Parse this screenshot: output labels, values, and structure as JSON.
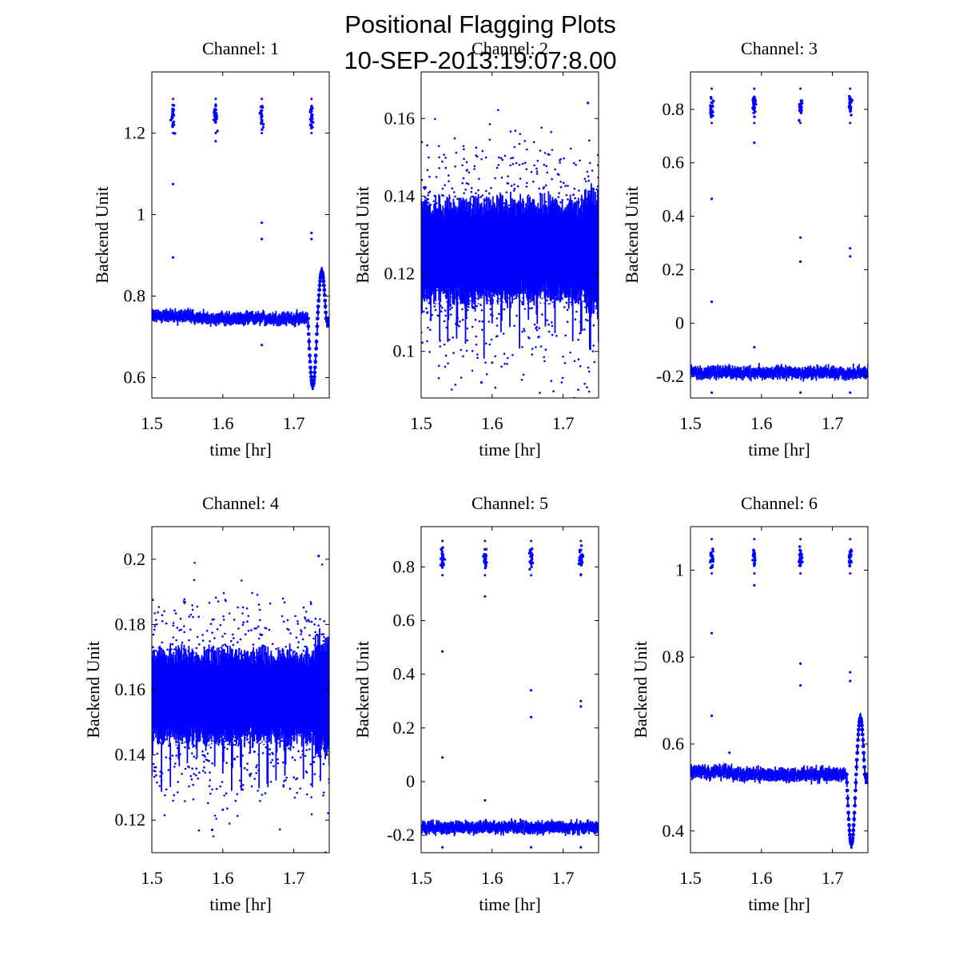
{
  "figure": {
    "title_line1": "Positional Flagging Plots",
    "title_line2": "10-SEP-2013:19:07:8.00",
    "marker_color": "#0000ff",
    "axes_color": "#000000",
    "background": "#ffffff"
  },
  "chart_data": [
    {
      "type": "scatter",
      "title": "Channel: 1",
      "xlabel": "time [hr]",
      "ylabel": "Backend Unit",
      "xlim": [
        1.5,
        1.75
      ],
      "ylim": [
        0.55,
        1.35
      ],
      "xticks": [
        1.5,
        1.6,
        1.7
      ],
      "xtick_labels": [
        "1.5",
        "1.6",
        "1.7"
      ],
      "yticks": [
        0.6,
        0.8,
        1.0,
        1.2
      ],
      "ytick_labels": [
        "0.6",
        "0.8",
        "1",
        "1.2"
      ],
      "series": [
        {
          "name": "Channel 1",
          "pattern": "low_with_dip",
          "baseline": 0.745,
          "spread": 0.01,
          "dip_min": 0.58,
          "dip_peak": 0.86,
          "spikes": [
            1.53,
            1.59,
            1.655,
            1.725
          ],
          "spike_level": 1.24,
          "outlier_pairs": [
            [
              1.53,
              1.075
            ],
            [
              1.53,
              0.895
            ],
            [
              1.655,
              0.98
            ],
            [
              1.655,
              0.94
            ],
            [
              1.725,
              0.955
            ],
            [
              1.725,
              0.94
            ],
            [
              1.59,
              1.18
            ],
            [
              1.655,
              0.68
            ]
          ]
        }
      ]
    },
    {
      "type": "scatter",
      "title": "Channel: 2",
      "xlabel": "time [hr]",
      "ylabel": "Backend Unit",
      "xlim": [
        1.5,
        1.75
      ],
      "ylim": [
        0.088,
        0.172
      ],
      "xticks": [
        1.5,
        1.6,
        1.7
      ],
      "xtick_labels": [
        "1.5",
        "1.6",
        "1.7"
      ],
      "yticks": [
        0.1,
        0.12,
        0.14,
        0.16
      ],
      "ytick_labels": [
        "0.1",
        "0.12",
        "0.14",
        "0.16"
      ],
      "series": [
        {
          "name": "Channel 2",
          "pattern": "noisy_band",
          "center": 0.126,
          "spread": 0.011,
          "max_outlier": 0.164,
          "min_outlier": 0.092
        }
      ]
    },
    {
      "type": "scatter",
      "title": "Channel: 3",
      "xlabel": "time [hr]",
      "ylabel": "Backend Unit",
      "xlim": [
        1.5,
        1.75
      ],
      "ylim": [
        -0.28,
        0.94
      ],
      "xticks": [
        1.5,
        1.6,
        1.7
      ],
      "xtick_labels": [
        "1.5",
        "1.6",
        "1.7"
      ],
      "yticks": [
        -0.2,
        0,
        0.2,
        0.4,
        0.6,
        0.8
      ],
      "ytick_labels": [
        "-0.2",
        "0",
        "0.2",
        "0.4",
        "0.6",
        "0.8"
      ],
      "series": [
        {
          "name": "Channel 3",
          "pattern": "low_flat",
          "baseline": -0.185,
          "spread": 0.015,
          "spikes": [
            1.53,
            1.59,
            1.655,
            1.725
          ],
          "spike_level": 0.81,
          "outlier_pairs": [
            [
              1.53,
              0.465
            ],
            [
              1.53,
              0.08
            ],
            [
              1.59,
              0.675
            ],
            [
              1.655,
              0.32
            ],
            [
              1.655,
              0.23
            ],
            [
              1.725,
              0.28
            ],
            [
              1.725,
              0.25
            ],
            [
              1.59,
              -0.09
            ],
            [
              1.53,
              -0.26
            ],
            [
              1.655,
              -0.26
            ],
            [
              1.725,
              -0.26
            ]
          ]
        }
      ]
    },
    {
      "type": "scatter",
      "title": "Channel: 4",
      "xlabel": "time [hr]",
      "ylabel": "Backend Unit",
      "xlim": [
        1.5,
        1.75
      ],
      "ylim": [
        0.11,
        0.21
      ],
      "xticks": [
        1.5,
        1.6,
        1.7
      ],
      "xtick_labels": [
        "1.5",
        "1.6",
        "1.7"
      ],
      "yticks": [
        0.12,
        0.14,
        0.16,
        0.18,
        0.2
      ],
      "ytick_labels": [
        "0.12",
        "0.14",
        "0.16",
        "0.18",
        "0.2"
      ],
      "series": [
        {
          "name": "Channel 4",
          "pattern": "noisy_band",
          "center": 0.158,
          "spread": 0.012,
          "max_outlier": 0.201,
          "min_outlier": 0.117
        }
      ]
    },
    {
      "type": "scatter",
      "title": "Channel: 5",
      "xlabel": "time [hr]",
      "ylabel": "Backend Unit",
      "xlim": [
        1.5,
        1.75
      ],
      "ylim": [
        -0.265,
        0.95
      ],
      "xticks": [
        1.5,
        1.6,
        1.7
      ],
      "xtick_labels": [
        "1.5",
        "1.6",
        "1.7"
      ],
      "yticks": [
        -0.2,
        0,
        0.2,
        0.4,
        0.6,
        0.8
      ],
      "ytick_labels": [
        "-0.2",
        "0",
        "0.2",
        "0.4",
        "0.6",
        "0.8"
      ],
      "series": [
        {
          "name": "Channel 5",
          "pattern": "low_flat",
          "baseline": -0.17,
          "spread": 0.015,
          "spikes": [
            1.53,
            1.59,
            1.655,
            1.725
          ],
          "spike_level": 0.83,
          "outlier_pairs": [
            [
              1.53,
              0.485
            ],
            [
              1.53,
              0.09
            ],
            [
              1.59,
              0.69
            ],
            [
              1.655,
              0.34
            ],
            [
              1.655,
              0.24
            ],
            [
              1.725,
              0.3
            ],
            [
              1.725,
              0.28
            ],
            [
              1.59,
              -0.07
            ],
            [
              1.53,
              -0.245
            ],
            [
              1.655,
              -0.245
            ],
            [
              1.725,
              -0.245
            ]
          ]
        }
      ]
    },
    {
      "type": "scatter",
      "title": "Channel: 6",
      "xlabel": "time [hr]",
      "ylabel": "Backend Unit",
      "xlim": [
        1.5,
        1.75
      ],
      "ylim": [
        0.35,
        1.1
      ],
      "xticks": [
        1.5,
        1.6,
        1.7
      ],
      "xtick_labels": [
        "1.5",
        "1.6",
        "1.7"
      ],
      "yticks": [
        0.4,
        0.6,
        0.8,
        1.0
      ],
      "ytick_labels": [
        "0.4",
        "0.6",
        "0.8",
        "1"
      ],
      "series": [
        {
          "name": "Channel 6",
          "pattern": "low_with_dip",
          "baseline": 0.53,
          "spread": 0.01,
          "dip_min": 0.37,
          "dip_peak": 0.66,
          "spikes": [
            1.53,
            1.59,
            1.655,
            1.725
          ],
          "spike_level": 1.03,
          "outlier_pairs": [
            [
              1.53,
              0.855
            ],
            [
              1.53,
              0.665
            ],
            [
              1.59,
              0.965
            ],
            [
              1.655,
              0.785
            ],
            [
              1.655,
              0.735
            ],
            [
              1.725,
              0.765
            ],
            [
              1.725,
              0.745
            ],
            [
              1.555,
              0.58
            ]
          ]
        }
      ]
    }
  ]
}
